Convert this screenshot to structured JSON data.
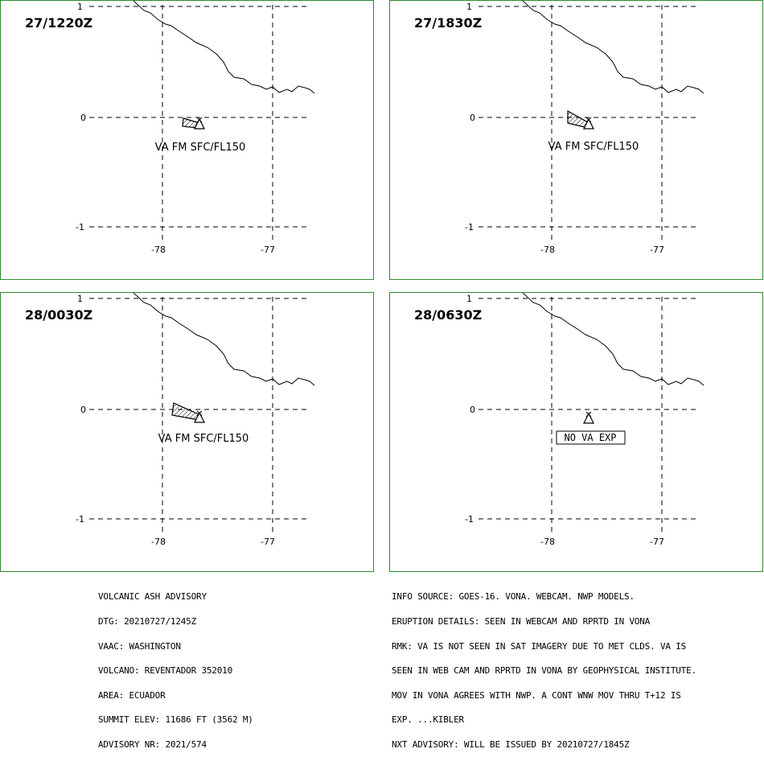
{
  "panels": [
    {
      "time": "27/1220Z",
      "label": "VA FM SFC/FL150",
      "plume": "small"
    },
    {
      "time": "27/1830Z",
      "label": "VA FM SFC/FL150",
      "plume": "large"
    },
    {
      "time": "28/0030Z",
      "label": "VA FM SFC/FL150",
      "plume": "large2"
    },
    {
      "time": "28/0630Z",
      "label": "NO VA EXP",
      "plume": "none"
    }
  ],
  "grid": {
    "lat_labels": [
      "1",
      "0",
      "-1"
    ],
    "lon_labels": [
      "-78",
      "-77"
    ]
  },
  "advisory_left": [
    "VOLCANIC ASH ADVISORY",
    "DTG: 20210727/1245Z",
    "VAAC: WASHINGTON",
    "VOLCANO: REVENTADOR 352010",
    "AREA: ECUADOR",
    "SUMMIT ELEV: 11686 FT (3562 M)",
    "ADVISORY NR: 2021/574"
  ],
  "advisory_right": [
    "INFO SOURCE: GOES-16. VONA. WEBCAM. NWP MODELS.",
    "ERUPTION DETAILS: SEEN IN WEBCAM AND RPRTD IN VONA",
    "RMK: VA IS NOT SEEN IN SAT IMAGERY DUE TO MET CLDS. VA IS",
    "SEEN IN WEB CAM AND RPRTD IN VONA BY GEOPHYSICAL INSTITUTE.",
    "MOV IN VONA AGREES WITH NWP. A CONT WNW MOV THRU T+12 IS",
    "EXP. ...KIBLER",
    "NXT ADVISORY: WILL BE ISSUED BY 20210727/1845Z"
  ],
  "colors": {
    "border": "#2e8b2e",
    "lines": "#000000"
  }
}
